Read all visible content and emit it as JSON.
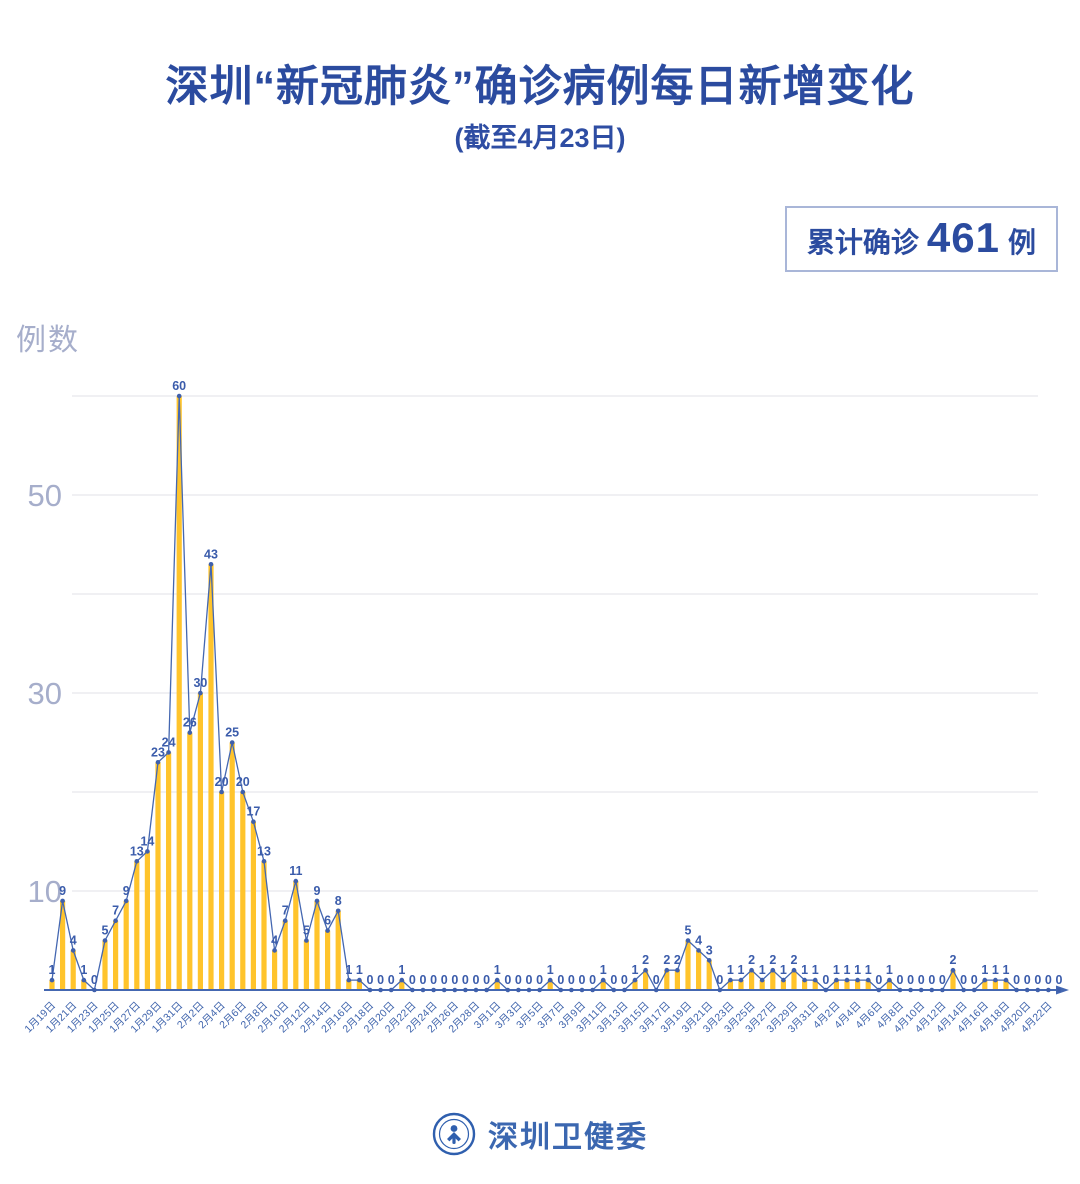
{
  "title": "深圳“新冠肺炎”确诊病例每日新增变化",
  "subtitle": "(截至4月23日)",
  "badge": {
    "label": "累计确诊",
    "value": "461",
    "unit": "例"
  },
  "y_axis_title": "例数",
  "footer": {
    "org_name": "深圳卫健委"
  },
  "chart_data": {
    "type": "bar",
    "overlay": "line",
    "title": "深圳“新冠肺炎”确诊病例每日新增变化",
    "subtitle": "(截至4月23日)",
    "xlabel": "",
    "ylabel": "例数",
    "ylim": [
      0,
      63
    ],
    "yticks": [
      10,
      30,
      50
    ],
    "gridlines": [
      10,
      20,
      30,
      40,
      50,
      60
    ],
    "grid": "on",
    "legend": "none",
    "cumulative_total": 461,
    "categories": [
      "1月19日",
      "1月20日",
      "1月21日",
      "1月22日",
      "1月23日",
      "1月24日",
      "1月25日",
      "1月26日",
      "1月27日",
      "1月28日",
      "1月29日",
      "1月30日",
      "1月31日",
      "2月1日",
      "2月2日",
      "2月3日",
      "2月4日",
      "2月5日",
      "2月6日",
      "2月7日",
      "2月8日",
      "2月9日",
      "2月10日",
      "2月11日",
      "2月12日",
      "2月13日",
      "2月14日",
      "2月15日",
      "2月16日",
      "2月17日",
      "2月18日",
      "2月19日",
      "2月20日",
      "2月21日",
      "2月22日",
      "2月23日",
      "2月24日",
      "2月25日",
      "2月26日",
      "2月27日",
      "2月28日",
      "2月29日",
      "3月1日",
      "3月2日",
      "3月3日",
      "3月4日",
      "3月5日",
      "3月6日",
      "3月7日",
      "3月8日",
      "3月9日",
      "3月10日",
      "3月11日",
      "3月12日",
      "3月13日",
      "3月14日",
      "3月15日",
      "3月16日",
      "3月17日",
      "3月18日",
      "3月19日",
      "3月20日",
      "3月21日",
      "3月22日",
      "3月23日",
      "3月24日",
      "3月25日",
      "3月26日",
      "3月27日",
      "3月28日",
      "3月29日",
      "3月30日",
      "3月31日",
      "4月1日",
      "4月2日",
      "4月3日",
      "4月4日",
      "4月5日",
      "4月6日",
      "4月7日",
      "4月8日",
      "4月9日",
      "4月10日",
      "4月11日",
      "4月12日",
      "4月13日",
      "4月14日",
      "4月15日",
      "4月16日",
      "4月17日",
      "4月18日",
      "4月19日",
      "4月20日",
      "4月21日",
      "4月22日",
      "4月23日"
    ],
    "values": [
      1,
      9,
      4,
      1,
      0,
      5,
      7,
      9,
      13,
      14,
      23,
      24,
      60,
      26,
      30,
      43,
      20,
      25,
      20,
      17,
      13,
      4,
      7,
      11,
      5,
      9,
      6,
      8,
      1,
      1,
      0,
      0,
      0,
      1,
      0,
      0,
      0,
      0,
      0,
      0,
      0,
      0,
      1,
      0,
      0,
      0,
      0,
      1,
      0,
      0,
      0,
      0,
      1,
      0,
      0,
      1,
      2,
      0,
      2,
      2,
      5,
      4,
      3,
      0,
      1,
      1,
      2,
      1,
      2,
      1,
      2,
      1,
      1,
      0,
      1,
      1,
      1,
      1,
      0,
      1,
      0,
      0,
      0,
      0,
      0,
      2,
      0,
      0,
      1,
      1,
      1,
      0,
      0,
      0,
      0,
      0
    ],
    "x_tick_labels": [
      "1月19日",
      "1月21日",
      "1月23日",
      "1月25日",
      "1月27日",
      "1月29日",
      "1月31日",
      "2月2日",
      "2月4日",
      "2月6日",
      "2月8日",
      "2月10日",
      "2月12日",
      "2月14日",
      "2月16日",
      "2月18日",
      "2月20日",
      "2月22日",
      "2月24日",
      "2月26日",
      "2月28日",
      "3月1日",
      "3月3日",
      "3月5日",
      "3月7日",
      "3月9日",
      "3月11日",
      "3月13日",
      "3月15日",
      "3月17日",
      "3月19日",
      "3月21日",
      "3月23日",
      "3月25日",
      "3月27日",
      "3月29日",
      "3月31日",
      "4月2日",
      "4月4日",
      "4月6日",
      "4月8日",
      "4月10日",
      "4月12日",
      "4月14日",
      "4月16日",
      "4月18日",
      "4月20日",
      "4月22日"
    ],
    "colors": {
      "bar": "#ffc42c",
      "line": "#4467b1",
      "point": "#3f60ac",
      "value_label": "#3b5cab",
      "tick_label": "#4065ad",
      "y_tick_label": "#a6aecb",
      "gridline": "#ebebef",
      "axis": "#4467b1",
      "title": "#2b4b9f"
    }
  }
}
